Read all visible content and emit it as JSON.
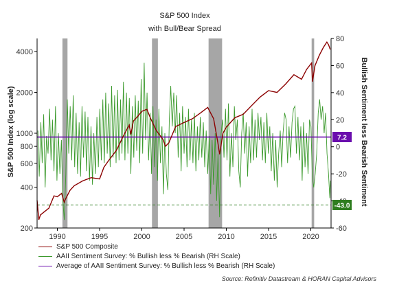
{
  "chart_data": {
    "type": "line",
    "title": "S&P 500 Index",
    "subtitle": "with Bull/Bear Spread",
    "ylabel_left": "S&P 500 Index (log scale)",
    "ylabel_right": "Bullish Sentiment less Bearish Sentiment",
    "x_range": [
      1987.6,
      2022.4
    ],
    "x_ticks": [
      "1990",
      "1995",
      "2000",
      "2005",
      "2010",
      "2015",
      "2020"
    ],
    "y_left_scale": "log",
    "y_left_range": [
      200,
      5000
    ],
    "y_left_ticks": [
      "200",
      "400",
      "600",
      "800",
      "1000",
      "2000",
      "4000"
    ],
    "y_right_range": [
      -60,
      80
    ],
    "y_right_ticks": [
      "-60",
      "-40",
      "-20",
      "0",
      "20",
      "40",
      "60",
      "80"
    ],
    "recessions": [
      [
        1990.6,
        1991.2
      ],
      [
        2001.2,
        2001.9
      ],
      [
        2007.9,
        2009.5
      ],
      [
        2020.1,
        2020.4
      ]
    ],
    "sp500_series": {
      "name": "S&P 500 Composite",
      "color": "#8b0000",
      "points": [
        [
          1987.6,
          320
        ],
        [
          1987.8,
          230
        ],
        [
          1988.0,
          250
        ],
        [
          1988.5,
          265
        ],
        [
          1989.0,
          280
        ],
        [
          1989.6,
          345
        ],
        [
          1990.0,
          340
        ],
        [
          1990.5,
          360
        ],
        [
          1990.8,
          310
        ],
        [
          1991.0,
          330
        ],
        [
          1991.5,
          380
        ],
        [
          1992.0,
          410
        ],
        [
          1993.0,
          445
        ],
        [
          1994.0,
          470
        ],
        [
          1995.0,
          460
        ],
        [
          1995.5,
          560
        ],
        [
          1996.0,
          620
        ],
        [
          1997.0,
          750
        ],
        [
          1997.8,
          950
        ],
        [
          1998.5,
          1150
        ],
        [
          1998.7,
          980
        ],
        [
          1999.0,
          1230
        ],
        [
          1999.5,
          1330
        ],
        [
          2000.0,
          1450
        ],
        [
          2000.6,
          1500
        ],
        [
          2001.0,
          1300
        ],
        [
          2001.7,
          1050
        ],
        [
          2002.5,
          900
        ],
        [
          2002.8,
          800
        ],
        [
          2003.2,
          850
        ],
        [
          2004.0,
          1120
        ],
        [
          2005.0,
          1200
        ],
        [
          2006.0,
          1280
        ],
        [
          2007.0,
          1420
        ],
        [
          2007.8,
          1550
        ],
        [
          2008.5,
          1280
        ],
        [
          2009.0,
          850
        ],
        [
          2009.2,
          700
        ],
        [
          2009.6,
          1000
        ],
        [
          2010.0,
          1110
        ],
        [
          2011.0,
          1300
        ],
        [
          2012.0,
          1380
        ],
        [
          2013.0,
          1600
        ],
        [
          2014.0,
          1850
        ],
        [
          2015.0,
          2060
        ],
        [
          2016.0,
          2000
        ],
        [
          2017.0,
          2300
        ],
        [
          2018.0,
          2700
        ],
        [
          2018.9,
          2500
        ],
        [
          2019.5,
          2950
        ],
        [
          2020.1,
          3300
        ],
        [
          2020.2,
          2400
        ],
        [
          2020.5,
          3150
        ],
        [
          2021.0,
          3750
        ],
        [
          2021.5,
          4300
        ],
        [
          2021.9,
          4700
        ],
        [
          2022.1,
          4500
        ],
        [
          2022.3,
          4150
        ]
      ]
    },
    "spread_series": {
      "name": "AAII Sentiment Survey: % Bullish less % Bearish (RH Scale)",
      "color": "#3c9a2d",
      "points": [
        [
          1987.7,
          12
        ],
        [
          1987.85,
          -22
        ],
        [
          1988.05,
          18
        ],
        [
          1988.2,
          -12
        ],
        [
          1988.38,
          24
        ],
        [
          1988.55,
          -30
        ],
        [
          1988.72,
          8
        ],
        [
          1988.9,
          -5
        ],
        [
          1989.08,
          28
        ],
        [
          1989.25,
          -10
        ],
        [
          1989.42,
          20
        ],
        [
          1989.6,
          -18
        ],
        [
          1989.78,
          30
        ],
        [
          1989.95,
          -25
        ],
        [
          1990.12,
          10
        ],
        [
          1990.3,
          -20
        ],
        [
          1990.48,
          5
        ],
        [
          1990.65,
          -40
        ],
        [
          1990.82,
          -54
        ],
        [
          1991.0,
          -20
        ],
        [
          1991.18,
          35
        ],
        [
          1991.35,
          -5
        ],
        [
          1991.52,
          30
        ],
        [
          1991.7,
          -10
        ],
        [
          1991.88,
          38
        ],
        [
          1992.05,
          -15
        ],
        [
          1992.22,
          25
        ],
        [
          1992.4,
          -20
        ],
        [
          1992.58,
          18
        ],
        [
          1992.75,
          -22
        ],
        [
          1992.92,
          30
        ],
        [
          1993.1,
          -8
        ],
        [
          1993.28,
          26
        ],
        [
          1993.45,
          -18
        ],
        [
          1993.62,
          22
        ],
        [
          1993.8,
          -25
        ],
        [
          1993.98,
          15
        ],
        [
          1994.15,
          -28
        ],
        [
          1994.32,
          10
        ],
        [
          1994.5,
          -20
        ],
        [
          1994.68,
          22
        ],
        [
          1994.85,
          -15
        ],
        [
          1995.02,
          28
        ],
        [
          1995.2,
          -10
        ],
        [
          1995.38,
          35
        ],
        [
          1995.55,
          -12
        ],
        [
          1995.72,
          40
        ],
        [
          1995.9,
          -5
        ],
        [
          1996.08,
          32
        ],
        [
          1996.25,
          -15
        ],
        [
          1996.42,
          45
        ],
        [
          1996.6,
          -8
        ],
        [
          1996.78,
          38
        ],
        [
          1996.95,
          -12
        ],
        [
          1997.12,
          42
        ],
        [
          1997.3,
          -10
        ],
        [
          1997.48,
          35
        ],
        [
          1997.65,
          -5
        ],
        [
          1997.82,
          48
        ],
        [
          1998.0,
          -10
        ],
        [
          1998.18,
          40
        ],
        [
          1998.35,
          -5
        ],
        [
          1998.52,
          36
        ],
        [
          1998.7,
          -20
        ],
        [
          1998.88,
          30
        ],
        [
          1999.05,
          -8
        ],
        [
          1999.22,
          38
        ],
        [
          1999.4,
          -3
        ],
        [
          1999.58,
          34
        ],
        [
          1999.75,
          -12
        ],
        [
          1999.92,
          50
        ],
        [
          2000.1,
          -5
        ],
        [
          2000.28,
          62
        ],
        [
          2000.45,
          5
        ],
        [
          2000.62,
          40
        ],
        [
          2000.8,
          -10
        ],
        [
          2000.98,
          25
        ],
        [
          2001.15,
          -20
        ],
        [
          2001.32,
          30
        ],
        [
          2001.5,
          -15
        ],
        [
          2001.68,
          20
        ],
        [
          2001.85,
          -25
        ],
        [
          2002.02,
          28
        ],
        [
          2002.2,
          -12
        ],
        [
          2002.38,
          15
        ],
        [
          2002.55,
          -35
        ],
        [
          2002.72,
          10
        ],
        [
          2002.9,
          -20
        ],
        [
          2003.08,
          -32
        ],
        [
          2003.25,
          20
        ],
        [
          2003.42,
          45
        ],
        [
          2003.6,
          15
        ],
        [
          2003.78,
          40
        ],
        [
          2003.95,
          10
        ],
        [
          2004.12,
          38
        ],
        [
          2004.3,
          -8
        ],
        [
          2004.48,
          25
        ],
        [
          2004.65,
          -18
        ],
        [
          2004.82,
          30
        ],
        [
          2005.0,
          -5
        ],
        [
          2005.18,
          22
        ],
        [
          2005.35,
          -15
        ],
        [
          2005.52,
          28
        ],
        [
          2005.7,
          -10
        ],
        [
          2005.88,
          20
        ],
        [
          2006.05,
          -12
        ],
        [
          2006.22,
          25
        ],
        [
          2006.4,
          -18
        ],
        [
          2006.58,
          15
        ],
        [
          2006.75,
          -10
        ],
        [
          2006.92,
          22
        ],
        [
          2007.1,
          -8
        ],
        [
          2007.28,
          18
        ],
        [
          2007.45,
          -15
        ],
        [
          2007.62,
          12
        ],
        [
          2007.8,
          -20
        ],
        [
          2007.98,
          8
        ],
        [
          2008.15,
          -35
        ],
        [
          2008.32,
          5
        ],
        [
          2008.5,
          -28
        ],
        [
          2008.68,
          10
        ],
        [
          2008.85,
          -40
        ],
        [
          2009.02,
          -5
        ],
        [
          2009.2,
          -52
        ],
        [
          2009.38,
          10
        ],
        [
          2009.55,
          20
        ],
        [
          2009.72,
          -8
        ],
        [
          2009.9,
          28
        ],
        [
          2010.08,
          -10
        ],
        [
          2010.25,
          32
        ],
        [
          2010.42,
          -22
        ],
        [
          2010.6,
          10
        ],
        [
          2010.78,
          -15
        ],
        [
          2010.95,
          30
        ],
        [
          2011.12,
          5
        ],
        [
          2011.3,
          20
        ],
        [
          2011.48,
          -18
        ],
        [
          2011.65,
          -30
        ],
        [
          2011.82,
          10
        ],
        [
          2012.0,
          25
        ],
        [
          2012.18,
          -5
        ],
        [
          2012.35,
          18
        ],
        [
          2012.52,
          -22
        ],
        [
          2012.7,
          15
        ],
        [
          2012.88,
          -12
        ],
        [
          2013.05,
          28
        ],
        [
          2013.22,
          -10
        ],
        [
          2013.4,
          20
        ],
        [
          2013.58,
          -8
        ],
        [
          2013.75,
          25
        ],
        [
          2013.92,
          5
        ],
        [
          2014.1,
          22
        ],
        [
          2014.28,
          -10
        ],
        [
          2014.45,
          18
        ],
        [
          2014.62,
          -12
        ],
        [
          2014.8,
          25
        ],
        [
          2014.98,
          -5
        ],
        [
          2015.15,
          15
        ],
        [
          2015.32,
          -18
        ],
        [
          2015.5,
          10
        ],
        [
          2015.68,
          -25
        ],
        [
          2015.85,
          5
        ],
        [
          2016.02,
          -30
        ],
        [
          2016.2,
          -5
        ],
        [
          2016.38,
          12
        ],
        [
          2016.55,
          -15
        ],
        [
          2016.72,
          10
        ],
        [
          2016.9,
          25
        ],
        [
          2017.08,
          20
        ],
        [
          2017.25,
          -12
        ],
        [
          2017.42,
          15
        ],
        [
          2017.6,
          -8
        ],
        [
          2017.78,
          18
        ],
        [
          2017.95,
          28
        ],
        [
          2018.12,
          30
        ],
        [
          2018.3,
          -5
        ],
        [
          2018.48,
          22
        ],
        [
          2018.65,
          -10
        ],
        [
          2018.82,
          15
        ],
        [
          2018.98,
          -25
        ],
        [
          2019.15,
          18
        ],
        [
          2019.32,
          -15
        ],
        [
          2019.5,
          10
        ],
        [
          2019.68,
          -20
        ],
        [
          2019.85,
          20
        ],
        [
          2020.02,
          15
        ],
        [
          2020.18,
          -22
        ],
        [
          2020.35,
          -30
        ],
        [
          2020.52,
          -20
        ],
        [
          2020.7,
          -5
        ],
        [
          2020.88,
          25
        ],
        [
          2021.05,
          35
        ],
        [
          2021.22,
          20
        ],
        [
          2021.4,
          30
        ],
        [
          2021.58,
          10
        ],
        [
          2021.75,
          25
        ],
        [
          2021.92,
          -5
        ],
        [
          2022.1,
          -20
        ],
        [
          2022.25,
          -38
        ],
        [
          2022.35,
          -25
        ]
      ]
    },
    "average": {
      "name": "Average of AAII Sentiment Survey: % Bullish less % Bearish (RH Scale)",
      "value": 7.2,
      "label": "7.2",
      "color": "#6a0dad"
    },
    "threshold": {
      "value": -43.0,
      "label": "-43.0",
      "color": "#2e7d1f"
    }
  },
  "legend": [
    {
      "label": "S&P 500 Composite",
      "color": "#8b0000"
    },
    {
      "label": "AAII Sentiment Survey: % Bullish less % Bearish (RH Scale)",
      "color": "#3c9a2d"
    },
    {
      "label": "Average of AAII Sentiment Survey: % Bullish less % Bearish (RH Scale)",
      "color": "#6a0dad"
    }
  ],
  "source": "Source: Refinitiv Datastream & HORAN Capital Advisors"
}
